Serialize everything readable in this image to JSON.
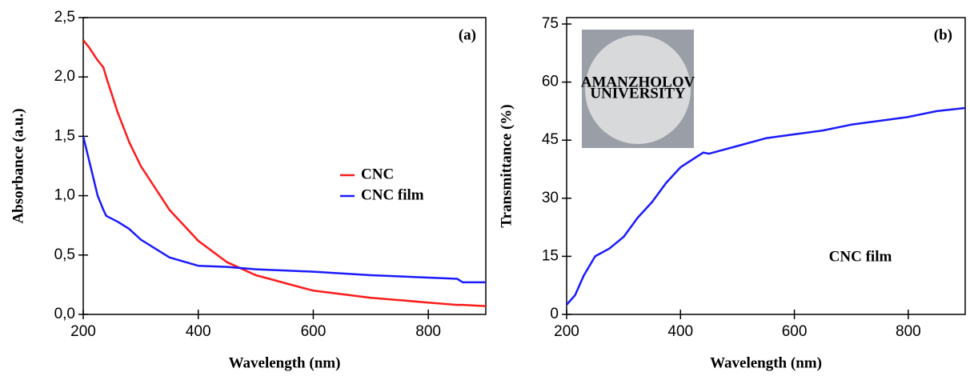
{
  "chart_data": [
    {
      "type": "line",
      "annotations": [
        "(a)"
      ],
      "xlabel": "Wavelength (nm)",
      "ylabel": "Absorbance (a.u.)",
      "x": [
        200,
        210,
        225,
        235,
        240,
        260,
        280,
        300,
        350,
        400,
        450,
        500,
        600,
        700,
        800,
        850,
        860,
        900
      ],
      "series": [
        {
          "name": "CNC",
          "color": "#ff1a1a",
          "values": [
            2.31,
            2.25,
            2.14,
            2.08,
            2.0,
            1.7,
            1.45,
            1.25,
            0.88,
            0.62,
            0.44,
            0.33,
            0.2,
            0.14,
            0.1,
            0.08,
            0.08,
            0.07
          ]
        },
        {
          "name": "CNC film",
          "color": "#1a1aff",
          "values": [
            1.5,
            1.3,
            1.0,
            0.88,
            0.83,
            0.78,
            0.72,
            0.63,
            0.48,
            0.41,
            0.4,
            0.38,
            0.36,
            0.33,
            0.31,
            0.3,
            0.27,
            0.27
          ]
        }
      ],
      "xlim": [
        200,
        900
      ],
      "xticks": [
        200,
        400,
        600,
        800
      ],
      "ylim": [
        0,
        2.5
      ],
      "yticks": [
        {
          "value": 0,
          "label": "0,0"
        },
        {
          "value": 0.5,
          "label": "0,5"
        },
        {
          "value": 1,
          "label": "1,0"
        },
        {
          "value": 1.5,
          "label": "1,5"
        },
        {
          "value": 2,
          "label": "2,0"
        },
        {
          "value": 2.5,
          "label": "2,5"
        }
      ],
      "grid": false,
      "legend": "center-right"
    },
    {
      "type": "line",
      "annotations": [
        "(b)",
        "CNC film"
      ],
      "inset_label": [
        "AMANZHOLOV",
        "UNIVERSITY"
      ],
      "xlabel": "Wavelength (nm)",
      "ylabel": "Transmittance (%)",
      "color": "#1a1aff",
      "x": [
        200,
        215,
        230,
        250,
        275,
        300,
        325,
        350,
        375,
        400,
        440,
        450,
        500,
        550,
        600,
        650,
        700,
        750,
        800,
        850,
        900
      ],
      "values": [
        2.5,
        5,
        10,
        15,
        17,
        20,
        25,
        29,
        34,
        38,
        41.8,
        41.5,
        43.5,
        45.5,
        46.5,
        47.5,
        49,
        50,
        51,
        52.5,
        53.3
      ],
      "xlim": [
        200,
        900
      ],
      "xticks": [
        200,
        400,
        600,
        800
      ],
      "ylim": [
        0,
        75
      ],
      "yticks": [
        0,
        15,
        30,
        45,
        60,
        75
      ],
      "grid": false
    }
  ]
}
